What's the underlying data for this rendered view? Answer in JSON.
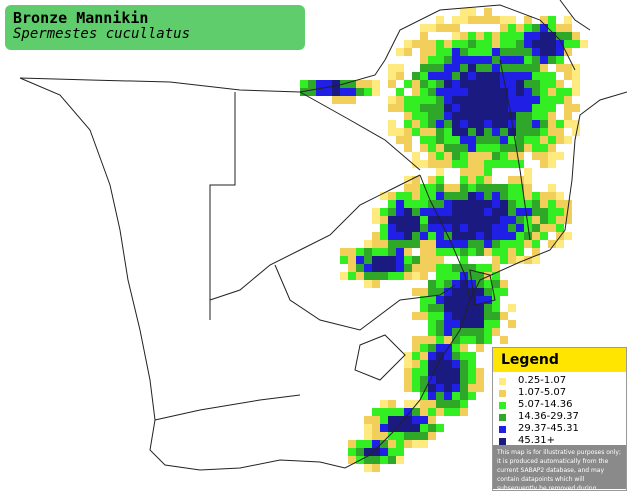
{
  "header": {
    "title": "Bronze Mannikin",
    "subtitle": "Spermestes cucullatus"
  },
  "legend": {
    "title": "Legend",
    "items": [
      {
        "label": "0.25-1.07",
        "color": "#ffea80"
      },
      {
        "label": "1.07-5.07",
        "color": "#f2cf5b"
      },
      {
        "label": "5.07-14.36",
        "color": "#33ee22"
      },
      {
        "label": "14.36-29.37",
        "color": "#2fa82a"
      },
      {
        "label": "29.37-45.31",
        "color": "#1f1fe6"
      },
      {
        "label": "45.31+",
        "color": "#1a1a80"
      }
    ],
    "note": "This map is for illustrative purposes only; it is produced automatically from the current SABAP2 database, and may contain datapoints which will subsequently be removed during checking operations."
  }
}
